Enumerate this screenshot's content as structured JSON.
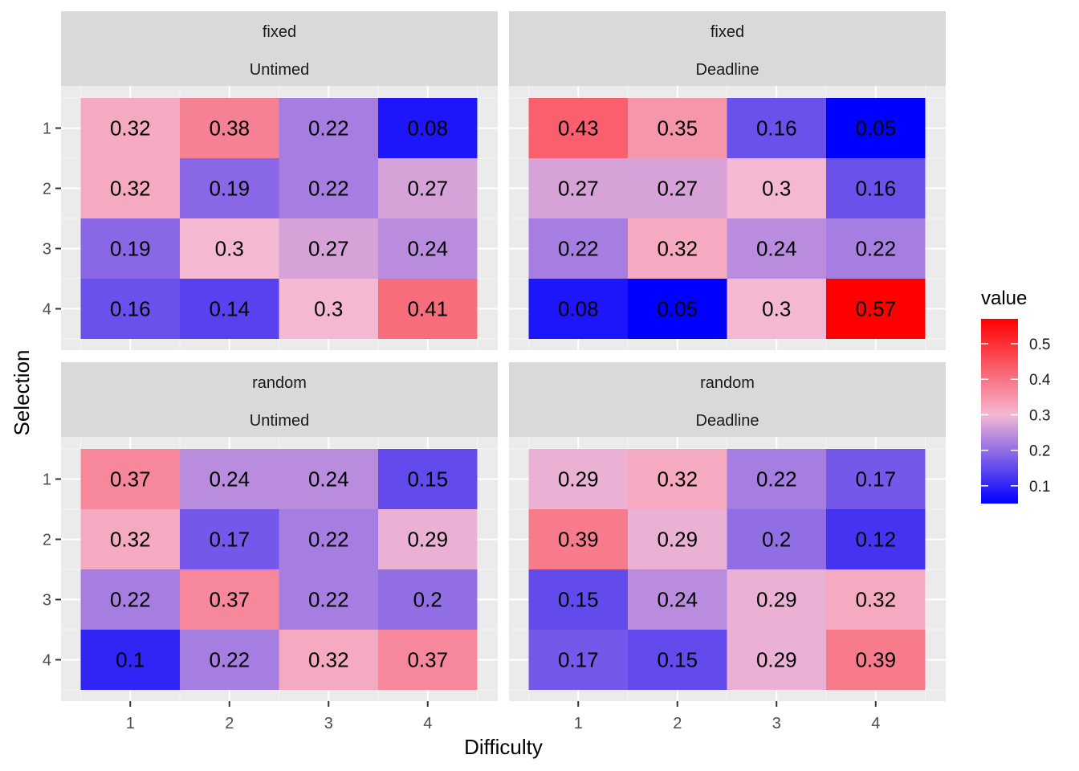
{
  "chart_data": {
    "type": "heatmap",
    "xlabel": "Difficulty",
    "ylabel": "Selection",
    "x_categories": [
      "1",
      "2",
      "3",
      "4"
    ],
    "y_categories": [
      "1",
      "2",
      "3",
      "4"
    ],
    "legend": {
      "title": "value",
      "placement": "right",
      "range": [
        0.05,
        0.57
      ],
      "ticks": [
        {
          "value": 0.1,
          "label": "0.1"
        },
        {
          "value": 0.2,
          "label": "0.2"
        },
        {
          "value": 0.3,
          "label": "0.3"
        },
        {
          "value": 0.4,
          "label": "0.4"
        },
        {
          "value": 0.5,
          "label": "0.5"
        }
      ]
    },
    "colors": {
      "low": "#0000ff",
      "mid": "#f4b8d2",
      "high": "#ff0000",
      "midpoint": 0.3
    },
    "grid": true,
    "panels": [
      {
        "strip1": "fixed",
        "strip2": "Untimed",
        "values": [
          [
            "0.32",
            "0.38",
            "0.22",
            "0.08"
          ],
          [
            "0.32",
            "0.19",
            "0.22",
            "0.27"
          ],
          [
            "0.19",
            "0.3",
            "0.27",
            "0.24"
          ],
          [
            "0.16",
            "0.14",
            "0.3",
            "0.41"
          ]
        ]
      },
      {
        "strip1": "fixed",
        "strip2": "Deadline",
        "values": [
          [
            "0.43",
            "0.35",
            "0.16",
            "0.05"
          ],
          [
            "0.27",
            "0.27",
            "0.3",
            "0.16"
          ],
          [
            "0.22",
            "0.32",
            "0.24",
            "0.22"
          ],
          [
            "0.08",
            "0.05",
            "0.3",
            "0.57"
          ]
        ]
      },
      {
        "strip1": "random",
        "strip2": "Untimed",
        "values": [
          [
            "0.37",
            "0.24",
            "0.24",
            "0.15"
          ],
          [
            "0.32",
            "0.17",
            "0.22",
            "0.29"
          ],
          [
            "0.22",
            "0.37",
            "0.22",
            "0.2"
          ],
          [
            "0.1",
            "0.22",
            "0.32",
            "0.37"
          ]
        ]
      },
      {
        "strip1": "random",
        "strip2": "Deadline",
        "values": [
          [
            "0.29",
            "0.32",
            "0.22",
            "0.17"
          ],
          [
            "0.39",
            "0.29",
            "0.2",
            "0.12"
          ],
          [
            "0.15",
            "0.24",
            "0.29",
            "0.32"
          ],
          [
            "0.17",
            "0.15",
            "0.29",
            "0.39"
          ]
        ]
      }
    ]
  }
}
